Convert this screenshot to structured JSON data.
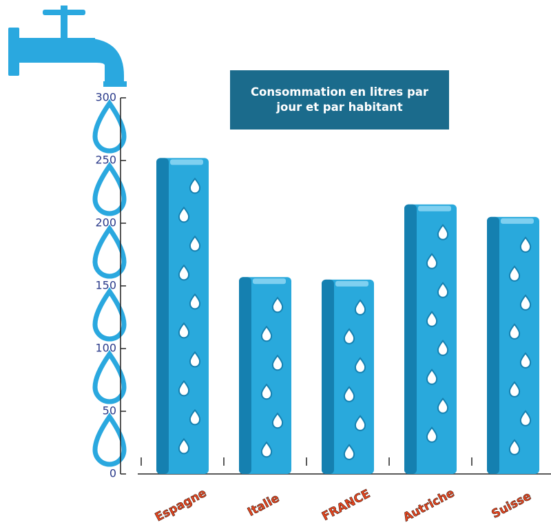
{
  "chart_data": {
    "type": "bar",
    "title": "Consommation en litres par jour et par habitant",
    "categories": [
      "Espagne",
      "Italie",
      "FRANCE",
      "Autriche",
      "Suisse"
    ],
    "values": [
      252,
      157,
      155,
      215,
      205
    ],
    "color": "#29a9dc",
    "ylim": [
      0,
      300
    ],
    "yticks": [
      0,
      50,
      100,
      150,
      200,
      250,
      300
    ]
  }
}
